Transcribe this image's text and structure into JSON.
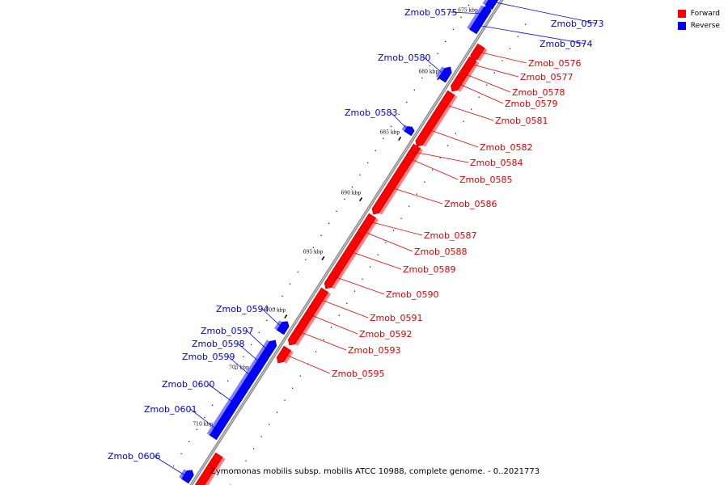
{
  "legend": {
    "forward_label": "Forward",
    "reverse_label": "Reverse",
    "forward_color": "#ff0000",
    "reverse_color": "#0000ff"
  },
  "caption": "Zymomonas mobilis subsp. mobilis ATCC 10988, complete genome. - 0..2021773",
  "ticks": [
    "675 kbp",
    "680 kbp",
    "685 kbp",
    "690 kbp",
    "695 kbp",
    "700 kbp",
    "705 kbp",
    "710 kbp"
  ],
  "forward_genes": [
    "Zmob_0576",
    "Zmob_0577",
    "Zmob_0578",
    "Zmob_0579",
    "Zmob_0581",
    "Zmob_0582",
    "Zmob_0584",
    "Zmob_0585",
    "Zmob_0586",
    "Zmob_0587",
    "Zmob_0588",
    "Zmob_0589",
    "Zmob_0590",
    "Zmob_0591",
    "Zmob_0592",
    "Zmob_0593",
    "Zmob_0595"
  ],
  "reverse_genes": [
    "Zmob_0573",
    "Zmob_0574",
    "Zmob_0575",
    "Zmob_0580",
    "Zmob_0583",
    "Zmob_0594",
    "Zmob_0597",
    "Zmob_0598",
    "Zmob_0599",
    "Zmob_0600",
    "Zmob_0601",
    "Zmob_0606"
  ]
}
